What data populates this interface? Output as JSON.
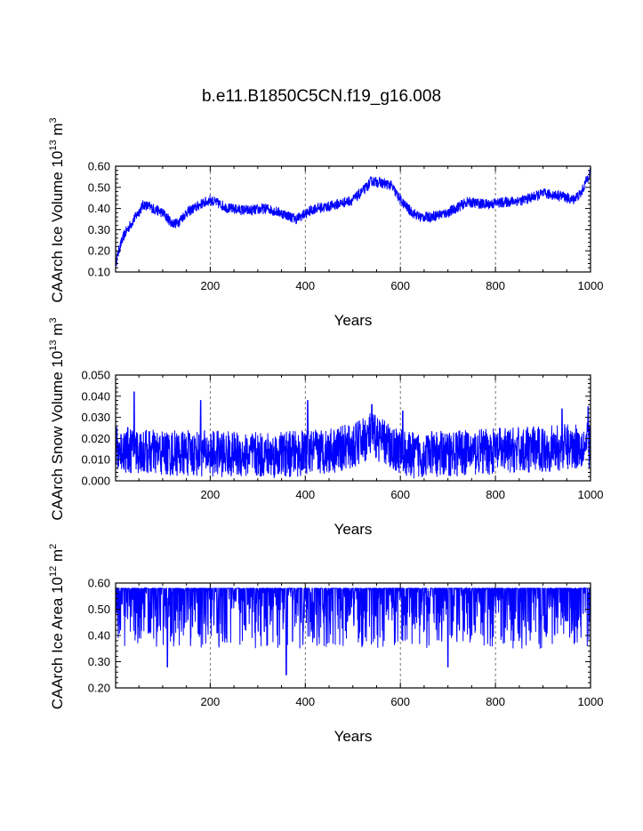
{
  "title": "b.e11.B1850C5CN.f19_g16.008",
  "colors": {
    "series": "#0000ff",
    "axis": "#000000",
    "grid": "#555555"
  },
  "chart_data": [
    {
      "type": "line",
      "name": "ice-volume",
      "ylabel": "CAArch Ice Volume",
      "ylabel_exp": "13",
      "ylabel_unit": "3",
      "xlabel": "Years",
      "xlim": [
        1,
        1000
      ],
      "ylim": [
        0.1,
        0.6
      ],
      "xticks": [
        "200",
        "400",
        "600",
        "800",
        "1000"
      ],
      "yticks": [
        "0.10",
        "0.20",
        "0.30",
        "0.40",
        "0.50",
        "0.60"
      ],
      "grid_x": [
        200,
        400,
        600,
        800
      ],
      "trend_x": [
        1,
        10,
        20,
        40,
        60,
        80,
        100,
        120,
        130,
        150,
        180,
        200,
        240,
        280,
        320,
        360,
        380,
        420,
        450,
        500,
        520,
        540,
        560,
        580,
        600,
        620,
        640,
        660,
        700,
        740,
        780,
        820,
        860,
        900,
        940,
        960,
        980,
        1000
      ],
      "trend_y": [
        0.14,
        0.22,
        0.28,
        0.35,
        0.42,
        0.4,
        0.38,
        0.33,
        0.33,
        0.38,
        0.42,
        0.44,
        0.4,
        0.39,
        0.4,
        0.37,
        0.35,
        0.4,
        0.41,
        0.44,
        0.48,
        0.53,
        0.52,
        0.51,
        0.44,
        0.39,
        0.36,
        0.36,
        0.38,
        0.43,
        0.42,
        0.43,
        0.44,
        0.47,
        0.46,
        0.44,
        0.47,
        0.58
      ],
      "noise": 0.025
    },
    {
      "type": "line",
      "name": "snow-volume",
      "ylabel": "CAArch Snow Volume",
      "ylabel_exp": "13",
      "ylabel_unit": "3",
      "xlabel": "Years",
      "xlim": [
        1,
        1000
      ],
      "ylim": [
        0.0,
        0.05
      ],
      "xticks": [
        "200",
        "400",
        "600",
        "800",
        "1000"
      ],
      "yticks": [
        "0.000",
        "0.010",
        "0.020",
        "0.030",
        "0.040",
        "0.050"
      ],
      "grid_x": [
        200,
        400,
        600,
        800
      ],
      "trend_x": [
        1,
        100,
        200,
        300,
        400,
        500,
        540,
        580,
        620,
        700,
        800,
        900,
        1000
      ],
      "trend_y": [
        0.015,
        0.013,
        0.013,
        0.012,
        0.013,
        0.016,
        0.022,
        0.016,
        0.012,
        0.013,
        0.014,
        0.015,
        0.017
      ],
      "noise": 0.011,
      "spikes_x": [
        40,
        180,
        405,
        540,
        605,
        940,
        995
      ],
      "spikes_y": [
        0.042,
        0.038,
        0.038,
        0.036,
        0.033,
        0.034,
        0.035
      ],
      "floor": 0.0
    },
    {
      "type": "line",
      "name": "ice-area",
      "ylabel": "CAArch Ice Area",
      "ylabel_exp": "12",
      "ylabel_unit": "2",
      "xlabel": "Years",
      "xlim": [
        1,
        1000
      ],
      "ylim": [
        0.2,
        0.6
      ],
      "xticks": [
        "200",
        "400",
        "600",
        "800",
        "1000"
      ],
      "yticks": [
        "0.20",
        "0.30",
        "0.40",
        "0.50",
        "0.60"
      ],
      "grid_x": [
        200,
        400,
        600,
        800
      ],
      "ceiling": 0.58,
      "dip_min": 0.35,
      "spikes_x": [
        110,
        360,
        700
      ],
      "spikes_y": [
        0.28,
        0.25,
        0.28
      ]
    }
  ]
}
